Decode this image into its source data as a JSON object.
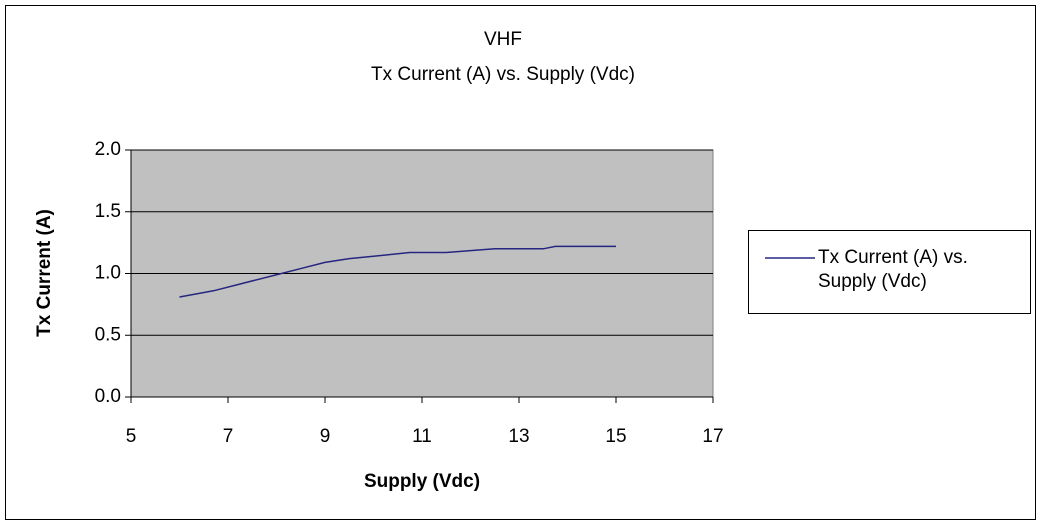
{
  "chart_data": {
    "type": "line",
    "title": "VHF",
    "subtitle": "Tx Current (A) vs. Supply (Vdc)",
    "x_label": "Supply (Vdc)",
    "y_label": "Tx Current (A)",
    "x": [
      6,
      6.7,
      7.2,
      8,
      8.5,
      9,
      9.5,
      10,
      10.5,
      10.75,
      11.5,
      12.5,
      13.5,
      13.75,
      15
    ],
    "series": [
      {
        "name": "Tx Current (A) vs. Supply (Vdc)",
        "color": "#262680",
        "values": [
          0.81,
          0.86,
          0.91,
          0.99,
          1.04,
          1.09,
          1.12,
          1.14,
          1.16,
          1.17,
          1.17,
          1.2,
          1.2,
          1.22,
          1.22
        ]
      }
    ],
    "xlim": [
      5,
      17
    ],
    "xticks": [
      5,
      7,
      9,
      11,
      13,
      15,
      17
    ],
    "ylim": [
      0,
      2
    ],
    "yticks": [
      {
        "value": 0,
        "label": "0.0"
      },
      0.5,
      {
        "value": 1,
        "label": "1.0"
      },
      1.5,
      {
        "value": 2,
        "label": "2.0"
      }
    ],
    "grid": true,
    "legend": "right",
    "plot_background": "#c0c0c0"
  }
}
